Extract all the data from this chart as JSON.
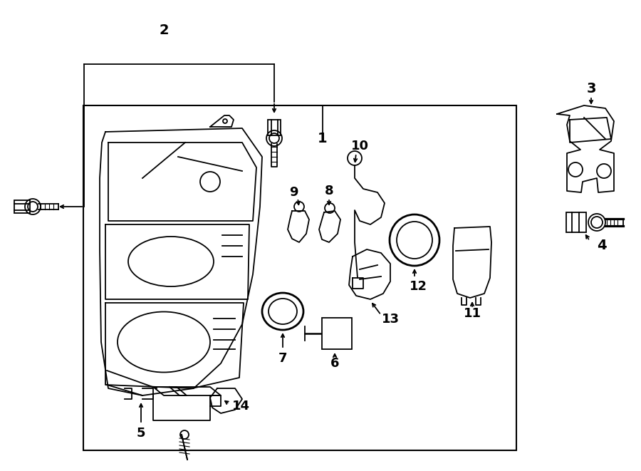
{
  "background_color": "#ffffff",
  "line_color": "#000000",
  "figure_width": 9.0,
  "figure_height": 6.61,
  "dpi": 100
}
